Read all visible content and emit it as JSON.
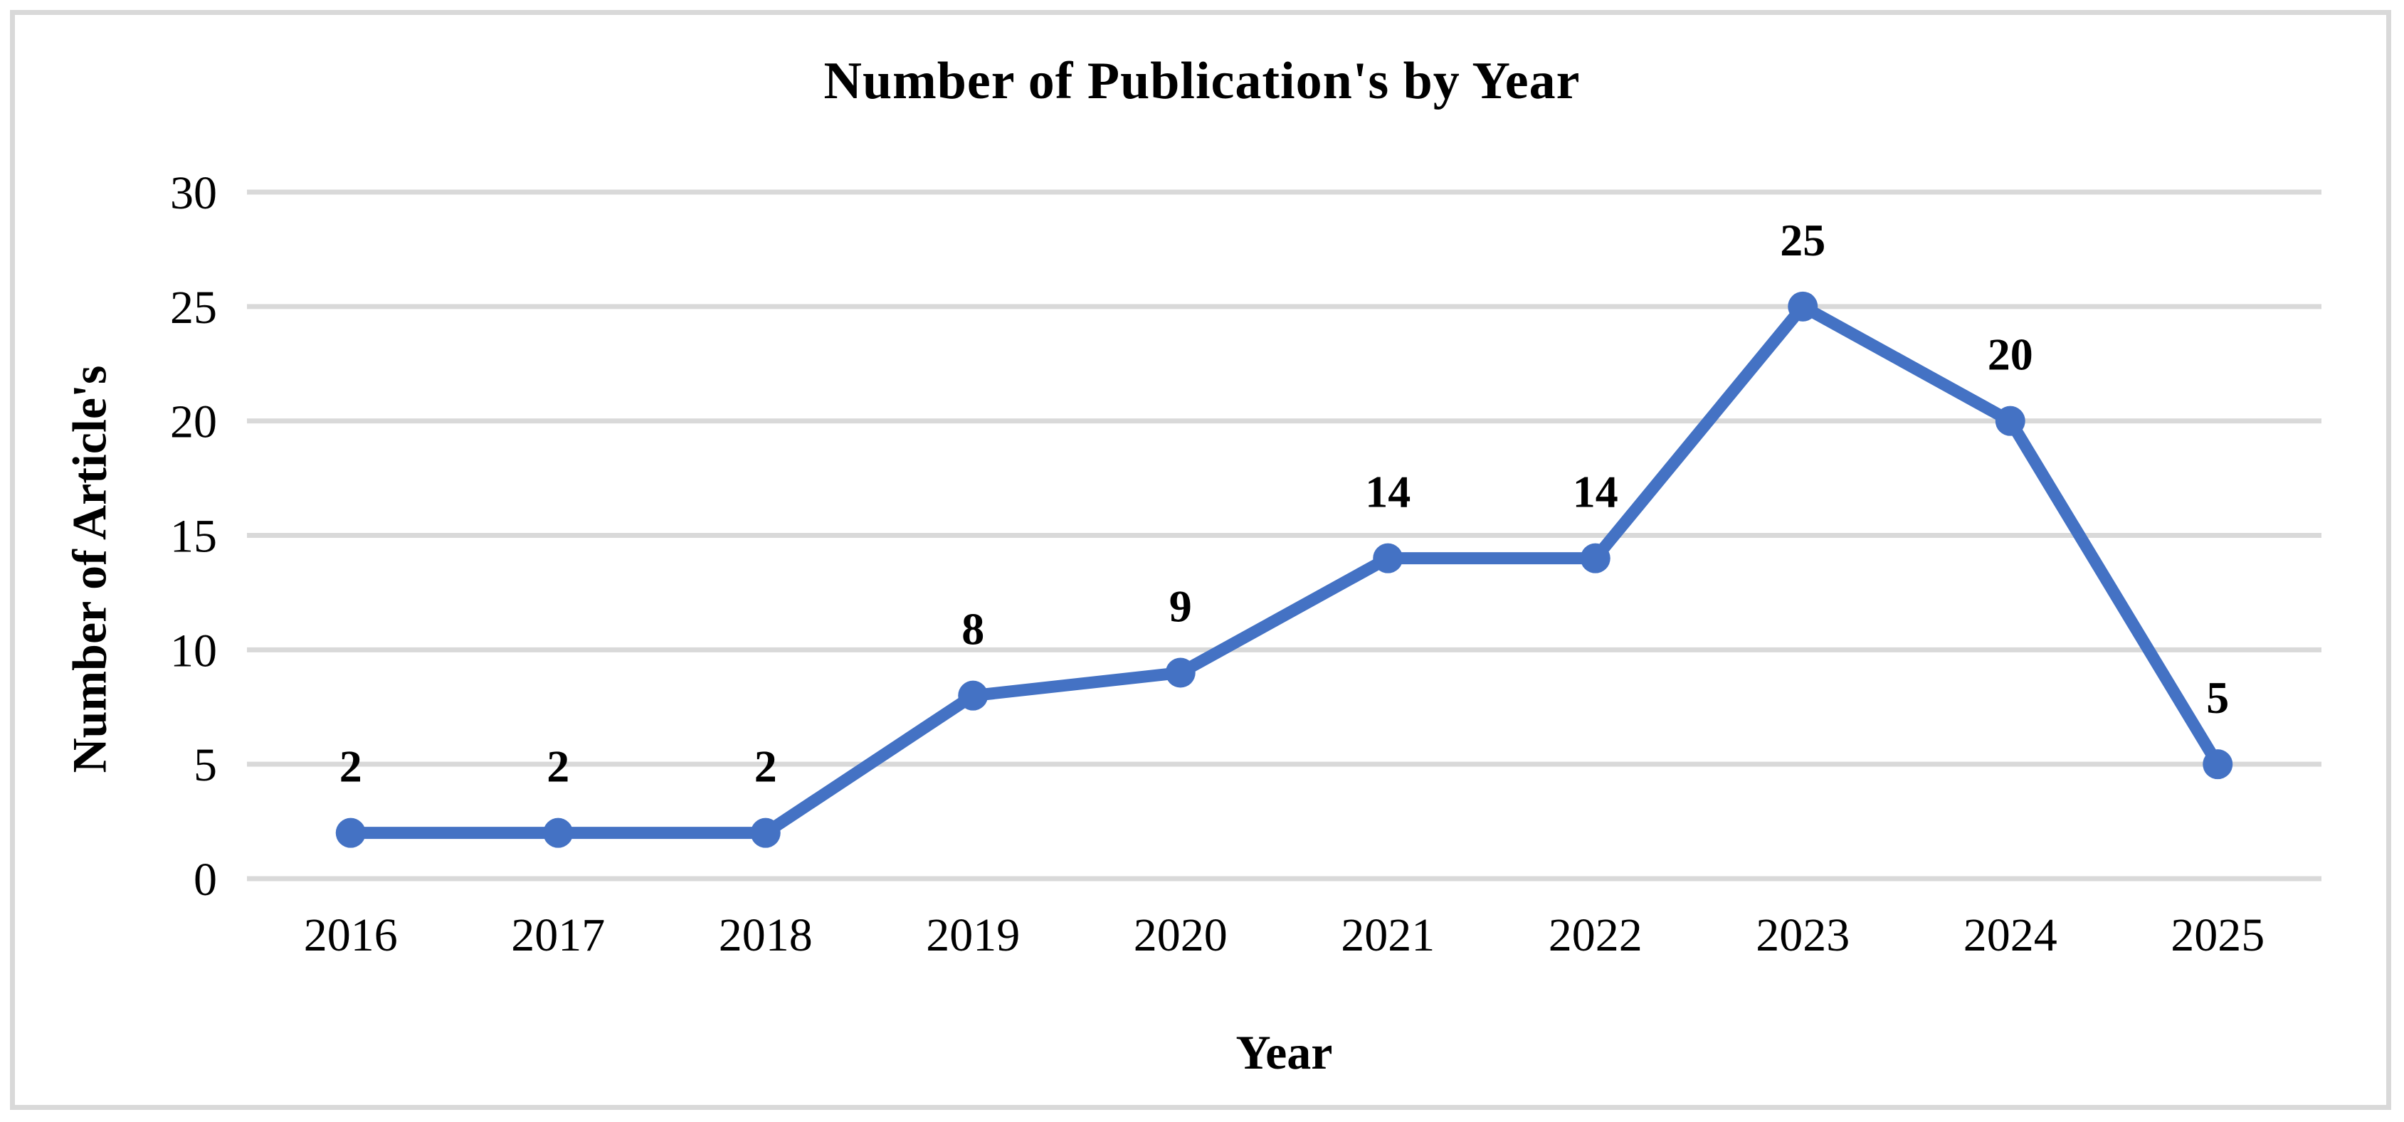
{
  "figure": {
    "background": "#FFFFFF",
    "frame_color": "#D9D9D9"
  },
  "chart_data": {
    "type": "line",
    "title": "Number of Publication's by Year",
    "xlabel": "Year",
    "ylabel": "Number of Article's",
    "categories": [
      "2016",
      "2017",
      "2018",
      "2019",
      "2020",
      "2021",
      "2022",
      "2023",
      "2024",
      "2025"
    ],
    "series": [
      {
        "name": "Number of Article's",
        "values": [
          2,
          2,
          2,
          8,
          9,
          14,
          14,
          25,
          20,
          5
        ]
      }
    ],
    "show_data_labels": true,
    "data_label_position": "above",
    "ylim": [
      0,
      30
    ],
    "yticks": [
      0,
      5,
      10,
      15,
      20,
      25,
      30
    ],
    "grid": true,
    "legend_position": "none",
    "line_color": "#4472C4",
    "marker_color": "#4472C4",
    "marker_shape": "circle",
    "gridline_color": "#D9D9D9",
    "text_color": "#000000"
  }
}
